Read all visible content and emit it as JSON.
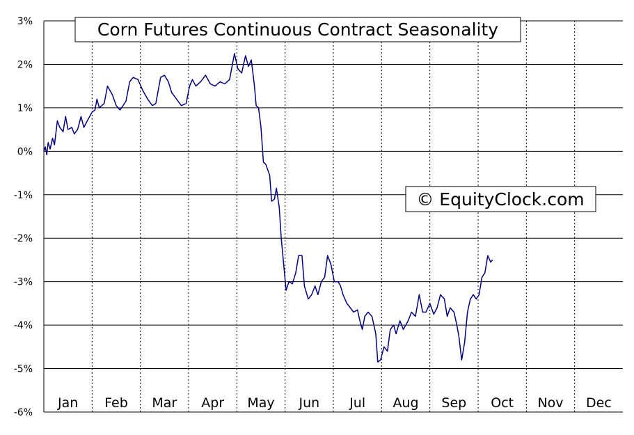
{
  "chart_data": {
    "type": "line",
    "title": "Corn Futures Continuous Contract Seasonality",
    "watermark": "© EquityClock.com",
    "xlabel": "",
    "ylabel": "",
    "x_ticks": [
      "Jan",
      "Feb",
      "Mar",
      "Apr",
      "May",
      "Jun",
      "Jul",
      "Aug",
      "Sep",
      "Oct",
      "Nov",
      "Dec"
    ],
    "y_ticks": [
      "3%",
      "2%",
      "1%",
      "0%",
      "-1%",
      "-2%",
      "-3%",
      "-4%",
      "-5%",
      "-6%"
    ],
    "ylim": [
      -6,
      3
    ],
    "grid": {
      "horizontal": "solid",
      "vertical": "dashed"
    },
    "line_color": "#000080",
    "series": [
      {
        "x_unit": "month (1.0 = start of Jan)",
        "y_unit": "percent",
        "points": [
          [
            1.0,
            0.0
          ],
          [
            1.03,
            0.1
          ],
          [
            1.06,
            -0.08
          ],
          [
            1.09,
            0.2
          ],
          [
            1.13,
            0.05
          ],
          [
            1.18,
            0.3
          ],
          [
            1.22,
            0.15
          ],
          [
            1.28,
            0.7
          ],
          [
            1.33,
            0.55
          ],
          [
            1.4,
            0.45
          ],
          [
            1.45,
            0.8
          ],
          [
            1.5,
            0.5
          ],
          [
            1.58,
            0.55
          ],
          [
            1.63,
            0.4
          ],
          [
            1.7,
            0.5
          ],
          [
            1.77,
            0.8
          ],
          [
            1.83,
            0.55
          ],
          [
            1.9,
            0.7
          ],
          [
            2.0,
            0.9
          ],
          [
            2.06,
            0.95
          ],
          [
            2.1,
            1.2
          ],
          [
            2.15,
            1.0
          ],
          [
            2.25,
            1.1
          ],
          [
            2.32,
            1.5
          ],
          [
            2.42,
            1.3
          ],
          [
            2.5,
            1.05
          ],
          [
            2.58,
            0.95
          ],
          [
            2.7,
            1.15
          ],
          [
            2.78,
            1.6
          ],
          [
            2.85,
            1.7
          ],
          [
            2.95,
            1.65
          ],
          [
            3.05,
            1.4
          ],
          [
            3.15,
            1.2
          ],
          [
            3.25,
            1.05
          ],
          [
            3.32,
            1.1
          ],
          [
            3.42,
            1.7
          ],
          [
            3.5,
            1.75
          ],
          [
            3.58,
            1.6
          ],
          [
            3.65,
            1.35
          ],
          [
            3.75,
            1.2
          ],
          [
            3.85,
            1.05
          ],
          [
            3.95,
            1.1
          ],
          [
            4.02,
            1.5
          ],
          [
            4.08,
            1.65
          ],
          [
            4.15,
            1.5
          ],
          [
            4.25,
            1.6
          ],
          [
            4.35,
            1.75
          ],
          [
            4.45,
            1.55
          ],
          [
            4.55,
            1.5
          ],
          [
            4.65,
            1.6
          ],
          [
            4.75,
            1.55
          ],
          [
            4.85,
            1.65
          ],
          [
            4.95,
            2.25
          ],
          [
            5.02,
            1.9
          ],
          [
            5.1,
            1.8
          ],
          [
            5.18,
            2.2
          ],
          [
            5.24,
            1.95
          ],
          [
            5.3,
            2.1
          ],
          [
            5.36,
            1.55
          ],
          [
            5.4,
            1.05
          ],
          [
            5.45,
            1.0
          ],
          [
            5.5,
            0.55
          ],
          [
            5.55,
            -0.25
          ],
          [
            5.6,
            -0.3
          ],
          [
            5.68,
            -0.55
          ],
          [
            5.72,
            -1.15
          ],
          [
            5.78,
            -1.1
          ],
          [
            5.82,
            -0.85
          ],
          [
            5.88,
            -1.3
          ],
          [
            5.92,
            -2.0
          ],
          [
            5.97,
            -2.6
          ],
          [
            6.02,
            -3.2
          ],
          [
            6.08,
            -3.0
          ],
          [
            6.15,
            -3.05
          ],
          [
            6.22,
            -2.8
          ],
          [
            6.28,
            -2.4
          ],
          [
            6.35,
            -2.4
          ],
          [
            6.4,
            -3.1
          ],
          [
            6.48,
            -3.4
          ],
          [
            6.55,
            -3.3
          ],
          [
            6.62,
            -3.1
          ],
          [
            6.68,
            -3.3
          ],
          [
            6.75,
            -3.0
          ],
          [
            6.82,
            -2.9
          ],
          [
            6.88,
            -2.4
          ],
          [
            6.95,
            -2.6
          ],
          [
            7.02,
            -3.0
          ],
          [
            7.1,
            -3.0
          ],
          [
            7.15,
            -3.1
          ],
          [
            7.2,
            -3.3
          ],
          [
            7.28,
            -3.5
          ],
          [
            7.35,
            -3.6
          ],
          [
            7.42,
            -3.7
          ],
          [
            7.5,
            -3.65
          ],
          [
            7.55,
            -3.9
          ],
          [
            7.6,
            -4.1
          ],
          [
            7.65,
            -3.8
          ],
          [
            7.72,
            -3.7
          ],
          [
            7.8,
            -3.8
          ],
          [
            7.88,
            -4.2
          ],
          [
            7.92,
            -4.85
          ],
          [
            7.98,
            -4.8
          ],
          [
            8.05,
            -4.5
          ],
          [
            8.12,
            -4.6
          ],
          [
            8.18,
            -4.1
          ],
          [
            8.25,
            -4.0
          ],
          [
            8.3,
            -4.2
          ],
          [
            8.38,
            -3.9
          ],
          [
            8.45,
            -4.1
          ],
          [
            8.55,
            -3.9
          ],
          [
            8.62,
            -3.7
          ],
          [
            8.7,
            -3.8
          ],
          [
            8.78,
            -3.3
          ],
          [
            8.85,
            -3.7
          ],
          [
            8.92,
            -3.7
          ],
          [
            9.0,
            -3.5
          ],
          [
            9.08,
            -3.75
          ],
          [
            9.15,
            -3.6
          ],
          [
            9.22,
            -3.3
          ],
          [
            9.3,
            -3.4
          ],
          [
            9.36,
            -3.8
          ],
          [
            9.42,
            -3.6
          ],
          [
            9.5,
            -3.7
          ],
          [
            9.55,
            -3.95
          ],
          [
            9.6,
            -4.25
          ],
          [
            9.66,
            -4.8
          ],
          [
            9.72,
            -4.4
          ],
          [
            9.78,
            -3.7
          ],
          [
            9.84,
            -3.4
          ],
          [
            9.9,
            -3.3
          ],
          [
            9.96,
            -3.4
          ],
          [
            10.02,
            -3.3
          ],
          [
            10.08,
            -2.9
          ],
          [
            10.14,
            -2.8
          ],
          [
            10.2,
            -2.4
          ],
          [
            10.26,
            -2.55
          ],
          [
            10.3,
            -2.5
          ]
        ]
      }
    ]
  }
}
